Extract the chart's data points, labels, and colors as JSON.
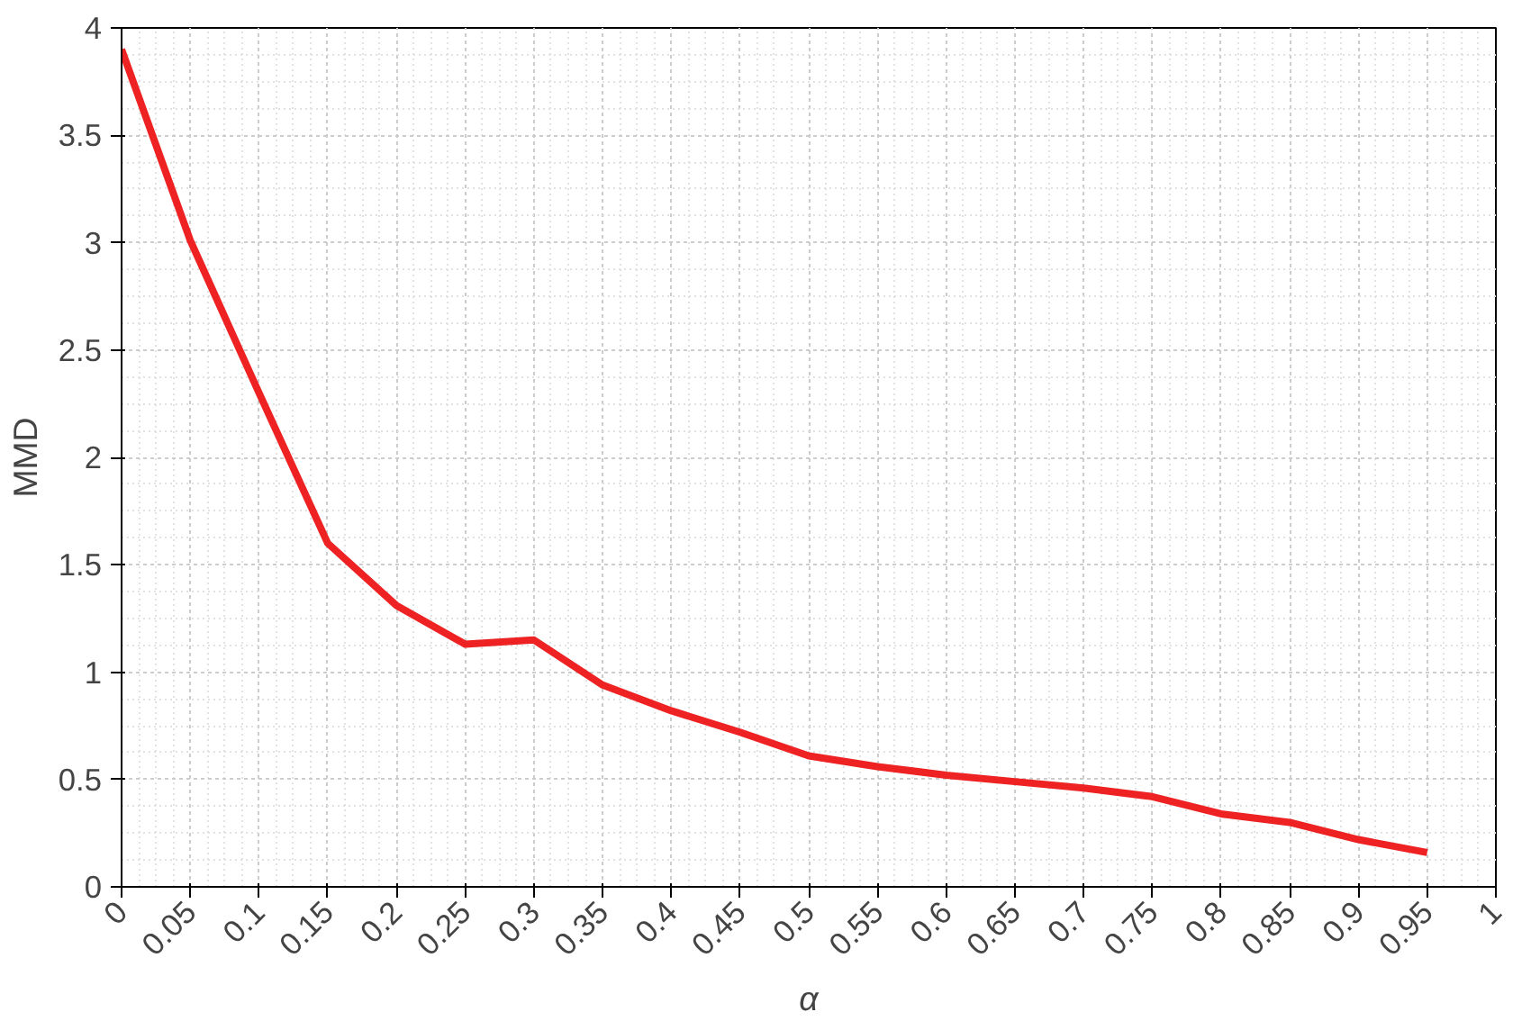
{
  "chart_data": {
    "type": "line",
    "xlabel": "α",
    "ylabel": "MMD",
    "x": [
      0,
      0.05,
      0.1,
      0.15,
      0.2,
      0.25,
      0.3,
      0.35,
      0.4,
      0.45,
      0.5,
      0.55,
      0.6,
      0.65,
      0.7,
      0.75,
      0.8,
      0.85,
      0.9,
      0.95
    ],
    "series": [
      {
        "color": "#ee2222",
        "values": [
          3.9,
          3.01,
          2.3,
          1.6,
          1.31,
          1.13,
          1.15,
          0.94,
          0.82,
          0.72,
          0.61,
          0.56,
          0.52,
          0.49,
          0.46,
          0.42,
          0.34,
          0.3,
          0.22,
          0.16
        ]
      }
    ],
    "xlim": [
      0,
      1
    ],
    "xticks": [
      0,
      0.05,
      0.1,
      0.15,
      0.2,
      0.25,
      0.3,
      0.35,
      0.4,
      0.45,
      0.5,
      0.55,
      0.6,
      0.65,
      0.7,
      0.75,
      0.8,
      0.85,
      0.9,
      0.95,
      1
    ],
    "ylim": [
      0,
      4
    ],
    "yticks": [
      0,
      0.5,
      1,
      1.5,
      2,
      2.5,
      3,
      3.5,
      4
    ],
    "grid": true,
    "marker": "none",
    "line_style": "solid"
  }
}
